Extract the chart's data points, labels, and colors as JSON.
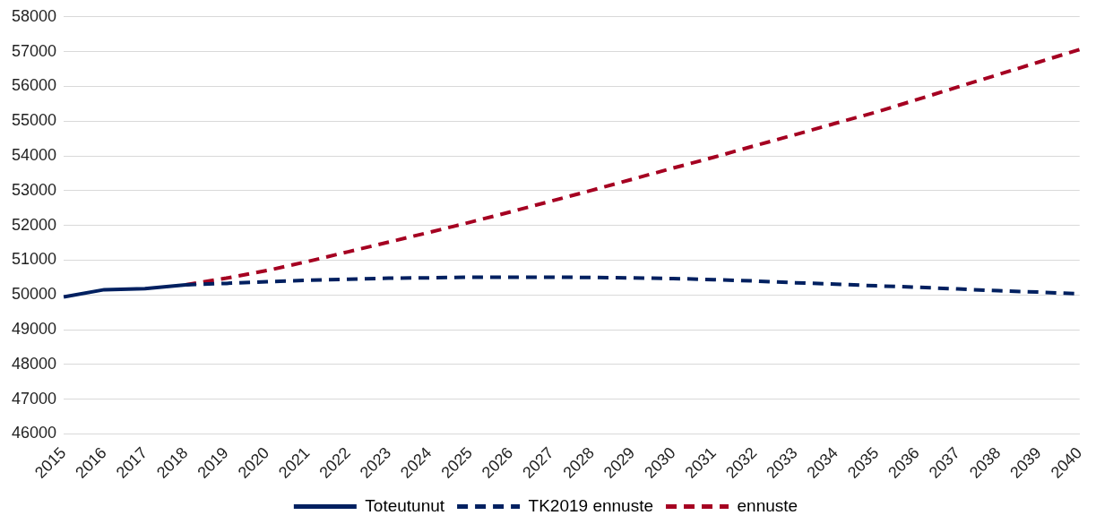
{
  "chart_data": {
    "type": "line",
    "categories": [
      "2015",
      "2016",
      "2017",
      "2018",
      "2019",
      "2020",
      "2021",
      "2022",
      "2023",
      "2024",
      "2025",
      "2026",
      "2027",
      "2028",
      "2029",
      "2030",
      "2031",
      "2032",
      "2033",
      "2034",
      "2035",
      "2036",
      "2037",
      "2038",
      "2039",
      "2040"
    ],
    "series": [
      {
        "name": "Toteutunut",
        "color": "#002060",
        "line_style": "solid",
        "values": [
          49940,
          50150,
          50180,
          50290,
          null,
          null,
          null,
          null,
          null,
          null,
          null,
          null,
          null,
          null,
          null,
          null,
          null,
          null,
          null,
          null,
          null,
          null,
          null,
          null,
          null,
          null
        ]
      },
      {
        "name": "TK2019 ennuste",
        "color": "#002060",
        "line_style": "dashed",
        "values": [
          null,
          null,
          null,
          50290,
          50330,
          50380,
          50420,
          50450,
          50480,
          50490,
          50510,
          50510,
          50510,
          50500,
          50490,
          50470,
          50440,
          50400,
          50350,
          50310,
          50260,
          50220,
          50170,
          50120,
          50080,
          50030
        ]
      },
      {
        "name": "ennuste",
        "color": "#a50021",
        "line_style": "dashed",
        "values": [
          null,
          null,
          null,
          50290,
          50480,
          50700,
          50960,
          51240,
          51520,
          51800,
          52090,
          52390,
          52700,
          53010,
          53330,
          53650,
          53960,
          54290,
          54610,
          54940,
          55260,
          55620,
          55980,
          56340,
          56700,
          57060
        ]
      }
    ],
    "ylim": [
      46000,
      58000
    ],
    "yticks": [
      46000,
      47000,
      48000,
      49000,
      50000,
      51000,
      52000,
      53000,
      54000,
      55000,
      56000,
      57000,
      58000
    ],
    "grid": "y",
    "legend": "bottom",
    "marker": "none"
  }
}
